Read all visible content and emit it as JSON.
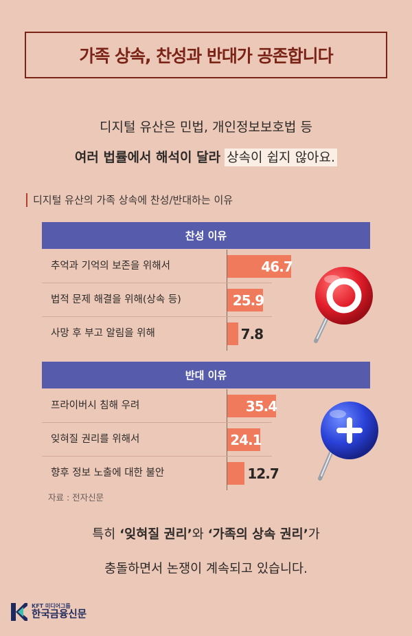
{
  "title": "가족 상속, 찬성과 반대가 공존합니다",
  "intro": {
    "line1": "디지털 유산은 민법, 개인정보보호법 등",
    "line2_bold": "여러 법률에서 해석이 달라",
    "line2_rest": "상속이 쉽지 않아요."
  },
  "chart_data": {
    "type": "bar",
    "title": "디지털 유산의 가족 상속에 찬성/반대하는 이유",
    "groups": [
      {
        "name": "찬성 이유",
        "categories": [
          "추억과 기억의 보존을 위해서",
          "법적 문제 해결을 위해(상속 등)",
          "사망 후 부고 알림을 위해"
        ],
        "values": [
          46.7,
          25.9,
          7.8
        ]
      },
      {
        "name": "반대 이유",
        "categories": [
          "프라이버시 침해 우려",
          "잊혀질 권리를 위해서",
          "향후 정보 노출에 대한 불안"
        ],
        "values": [
          35.4,
          24.1,
          12.7
        ]
      }
    ],
    "bar_color": "#f07a5c",
    "header_color": "#575bab",
    "source": "자료 : 전자신문"
  },
  "conclusion": {
    "p1": "특히 ",
    "q1": "‘잊혀질 권리’",
    "p2": "와 ",
    "q2": "‘가족의 상속 권리’",
    "p3": "가",
    "line2": "충돌하면서 논쟁이 계속되고 있습니다."
  },
  "logo": {
    "sub": "KFT 미디어그룹",
    "main": "한국금융신문"
  },
  "icons": {
    "agree": "pin-circle-icon",
    "oppose": "pin-cross-icon"
  }
}
